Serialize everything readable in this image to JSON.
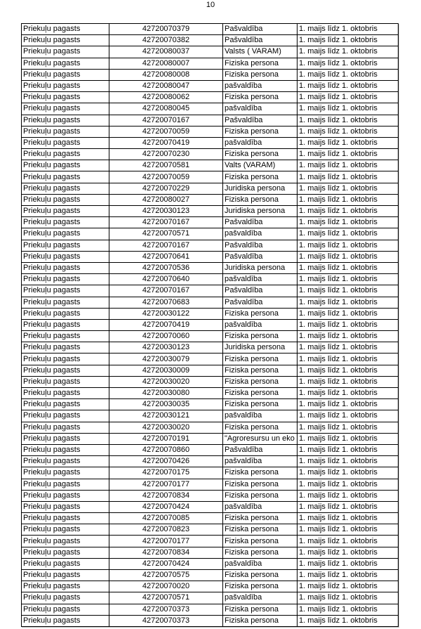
{
  "page_number": "10",
  "table": {
    "rows": [
      [
        "Priekuļu pagasts",
        "42720070379",
        "Pašvaldība",
        "1. maijs līdz 1. oktobris"
      ],
      [
        "Priekuļu pagasts",
        "42720070382",
        "Pašvaldība",
        "1. maijs līdz 1. oktobris"
      ],
      [
        "Priekuļu pagasts",
        "42720080037",
        "Valsts ( VARAM)",
        "1. maijs līdz 1. oktobris"
      ],
      [
        "Priekuļu pagasts",
        "42720080007",
        "Fiziska persona",
        "1. maijs līdz 1. oktobris"
      ],
      [
        "Priekuļu pagasts",
        "42720080008",
        "Fiziska persona",
        "1. maijs līdz 1. oktobris"
      ],
      [
        "Priekuļu pagasts",
        "42720080047",
        "pašvaldība",
        "1. maijs līdz 1. oktobris"
      ],
      [
        "Priekuļu pagasts",
        "42720080062",
        "Fiziska persona",
        "1. maijs līdz 1. oktobris"
      ],
      [
        "Priekuļu pagasts",
        "42720080045",
        "pašvaldība",
        "1. maijs līdz 1. oktobris"
      ],
      [
        "Priekuļu pagasts",
        "42720070167",
        "Pašvaldība",
        "1. maijs līdz 1. oktobris"
      ],
      [
        "Priekuļu pagasts",
        "42720070059",
        "Fiziska persona",
        "1. maijs līdz 1. oktobris"
      ],
      [
        "Priekuļu pagasts",
        "42720070419",
        "pašvaldība",
        "1. maijs līdz 1. oktobris"
      ],
      [
        "Priekuļu pagasts",
        "42720070230",
        "Fiziska persona",
        "1. maijs līdz 1. oktobris"
      ],
      [
        "Priekuļu pagasts",
        "42720070581",
        "Valts (VARAM)",
        "1. maijs līdz 1. oktobris"
      ],
      [
        "Priekuļu pagasts",
        "42720070059",
        "Fiziska persona",
        "1. maijs līdz 1. oktobris"
      ],
      [
        "Priekuļu pagasts",
        "42720070229",
        "Juridiska persona",
        "1. maijs līdz 1. oktobris"
      ],
      [
        "Priekuļu pagasts",
        "42720080027",
        "Fiziska persona",
        "1. maijs līdz 1. oktobris"
      ],
      [
        "Priekuļu pagasts",
        "42720030123",
        "Juridiska persona",
        "1. maijs līdz 1. oktobris"
      ],
      [
        "Priekuļu pagasts",
        "42720070167",
        "Pašvaldība",
        "1. maijs līdz 1. oktobris"
      ],
      [
        "Priekuļu pagasts",
        "42720070571",
        "pašvaldība",
        "1. maijs līdz 1. oktobris"
      ],
      [
        "Priekuļu pagasts",
        "42720070167",
        "Pašvaldība",
        "1. maijs līdz 1. oktobris"
      ],
      [
        "Priekuļu pagasts",
        "42720070641",
        "Pašvaldība",
        "1. maijs līdz 1. oktobris"
      ],
      [
        "Priekuļu pagasts",
        "42720070536",
        "Juridiska persona",
        "1. maijs līdz 1. oktobris"
      ],
      [
        "Priekuļu pagasts",
        "42720070640",
        "pašvaldība",
        "1. maijs līdz 1. oktobris"
      ],
      [
        "Priekuļu pagasts",
        "42720070167",
        "Pašvaldība",
        "1. maijs līdz 1. oktobris"
      ],
      [
        "Priekuļu pagasts",
        "42720070683",
        "Pašvaldība",
        "1. maijs līdz 1. oktobris"
      ],
      [
        "Priekuļu pagasts",
        "42720030122",
        "Fiziska persona",
        "1. maijs līdz 1. oktobris"
      ],
      [
        "Priekuļu pagasts",
        "42720070419",
        "pašvaldība",
        "1. maijs līdz 1. oktobris"
      ],
      [
        "Priekuļu pagasts",
        "42720070060",
        "Fiziska persona",
        "1. maijs līdz 1. oktobris"
      ],
      [
        "Priekuļu pagasts",
        "42720030123",
        "Juridiska persona",
        "1. maijs līdz 1. oktobris"
      ],
      [
        "Priekuļu pagasts",
        "42720030079",
        "Fiziska persona",
        "1. maijs līdz 1. oktobris"
      ],
      [
        "Priekuļu pagasts",
        "42720030009",
        "Fiziska persona",
        "1. maijs līdz 1. oktobris"
      ],
      [
        "Priekuļu pagasts",
        "42720030020",
        "Fiziska persona",
        "1. maijs līdz 1. oktobris"
      ],
      [
        "Priekuļu pagasts",
        "42720030080",
        "Fiziska persona",
        "1. maijs līdz 1. oktobris"
      ],
      [
        "Priekuļu pagasts",
        "42720030035",
        "Fiziska persona",
        "1. maijs līdz 1. oktobris"
      ],
      [
        "Priekuļu pagasts",
        "42720030121",
        "pašvaldība",
        "1. maijs līdz 1. oktobris"
      ],
      [
        "Priekuļu pagasts",
        "42720030020",
        "Fiziska persona",
        "1. maijs līdz 1. oktobris"
      ],
      [
        "Priekuļu pagasts",
        "42720070191",
        "\"Agroresursu un eko",
        "1. maijs līdz 1. oktobris"
      ],
      [
        "Priekuļu pagasts",
        "42720070860",
        "Pašvaldība",
        "1. maijs līdz 1. oktobris"
      ],
      [
        "Priekuļu pagasts",
        "42720070426",
        "pašvaldība",
        "1. maijs līdz 1. oktobris"
      ],
      [
        "Priekuļu pagasts",
        "42720070175",
        "Fiziska persona",
        "1. maijs līdz 1. oktobris"
      ],
      [
        "Priekuļu pagasts",
        "42720070177",
        "Fiziska persona",
        "1. maijs līdz 1. oktobris"
      ],
      [
        "Priekuļu pagasts",
        "42720070834",
        "Fiziska persona",
        "1. maijs līdz 1. oktobris"
      ],
      [
        "Priekuļu pagasts",
        "42720070424",
        "pašvaldība",
        "1. maijs līdz 1. oktobris"
      ],
      [
        "Priekuļu pagasts",
        "42720070085",
        "Fiziska persona",
        "1. maijs līdz 1. oktobris"
      ],
      [
        "Priekuļu pagasts",
        "42720070823",
        "Fiziska persona",
        "1. maijs līdz 1. oktobris"
      ],
      [
        "Priekuļu pagasts",
        "42720070177",
        "Fiziska persona",
        "1. maijs līdz 1. oktobris"
      ],
      [
        "Priekuļu pagasts",
        "42720070834",
        "Fiziska persona",
        "1. maijs līdz 1. oktobris"
      ],
      [
        "Priekuļu pagasts",
        "42720070424",
        "pašvaldība",
        "1. maijs līdz 1. oktobris"
      ],
      [
        "Priekuļu pagasts",
        "42720070575",
        "Fiziska persona",
        "1. maijs līdz 1. oktobris"
      ],
      [
        "Priekuļu pagasts",
        "42720070020",
        "Fiziska persona",
        "1. maijs līdz 1. oktobris"
      ],
      [
        "Priekuļu pagasts",
        "42720070571",
        "pašvaldība",
        "1. maijs līdz 1. oktobris"
      ],
      [
        "Priekuļu pagasts",
        "42720070373",
        "Fiziska persona",
        "1. maijs līdz 1. oktobris"
      ],
      [
        "Priekuļu pagasts",
        "42720070373",
        "Fiziska persona",
        "1. maijs līdz 1. oktobris"
      ]
    ]
  }
}
